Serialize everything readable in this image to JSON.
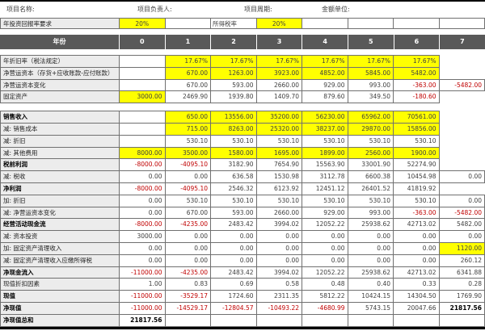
{
  "colors": {
    "highlight": "#FFFF00",
    "negative": "#C00000",
    "year_header_bg": "#595959",
    "label_bg": "#ECECEC"
  },
  "header": {
    "fields": [
      {
        "label": "项目名称:"
      },
      {
        "label": "项目负责人:"
      },
      {
        "label": "项目周期:"
      },
      {
        "label": "金额单位:"
      }
    ]
  },
  "rates": {
    "label": "年投资回报率要求",
    "value": "20%",
    "tax_label": "所得税率",
    "tax_value": "20%"
  },
  "year_header": {
    "label": "年份",
    "years": [
      "0",
      "1",
      "2",
      "3",
      "4",
      "5",
      "6",
      "7"
    ]
  },
  "table": {
    "blocks": [
      {
        "rows": [
          {
            "label": "年折旧率（税法规定）",
            "cells": [
              {
                "t": ""
              },
              {
                "t": "17.67%",
                "y": 1
              },
              {
                "t": "17.67%",
                "y": 1
              },
              {
                "t": "17.67%",
                "y": 1
              },
              {
                "t": "17.67%",
                "y": 1
              },
              {
                "t": "17.67%",
                "y": 1
              },
              {
                "t": "17.67%",
                "y": 1
              },
              null
            ]
          },
          {
            "label": "净营运资本（存货+应收账款-应付账款）",
            "cells": [
              {
                "t": ""
              },
              {
                "t": "670.00",
                "y": 1
              },
              {
                "t": "1263.00",
                "y": 1
              },
              {
                "t": "3923.00",
                "y": 1
              },
              {
                "t": "4852.00",
                "y": 1
              },
              {
                "t": "5845.00",
                "y": 1
              },
              {
                "t": "5482.00",
                "y": 1
              },
              null
            ]
          },
          {
            "label": "净营运资本变化",
            "cells": [
              {
                "t": ""
              },
              {
                "t": "670.00"
              },
              {
                "t": "593.00"
              },
              {
                "t": "2660.00"
              },
              {
                "t": "929.00"
              },
              {
                "t": "993.00"
              },
              {
                "t": "-363.00",
                "r": 1
              },
              {
                "t": "-5482.00",
                "r": 1
              }
            ]
          },
          {
            "label": "固定资产",
            "cells": [
              {
                "t": "3000.00",
                "y": 1
              },
              {
                "t": "2469.90"
              },
              {
                "t": "1939.80"
              },
              {
                "t": "1409.70"
              },
              {
                "t": "879.60"
              },
              {
                "t": "349.50"
              },
              {
                "t": "-180.60",
                "r": 1
              },
              null
            ]
          }
        ]
      },
      {
        "rows": [
          {
            "label": "销售收入",
            "bold": 1,
            "cells": [
              {
                "t": ""
              },
              {
                "t": "650.00",
                "y": 1
              },
              {
                "t": "13556.00",
                "y": 1
              },
              {
                "t": "35200.00",
                "y": 1
              },
              {
                "t": "56230.00",
                "y": 1
              },
              {
                "t": "65962.00",
                "y": 1
              },
              {
                "t": "70561.00",
                "y": 1
              },
              null
            ]
          },
          {
            "label": "减: 销售成本",
            "cells": [
              {
                "t": ""
              },
              {
                "t": "715.00",
                "y": 1
              },
              {
                "t": "8263.00",
                "y": 1
              },
              {
                "t": "25320.00",
                "y": 1
              },
              {
                "t": "38237.00",
                "y": 1
              },
              {
                "t": "29870.00",
                "y": 1
              },
              {
                "t": "15856.00",
                "y": 1
              },
              null
            ]
          },
          {
            "label": "减: 折旧",
            "cells": [
              {
                "t": ""
              },
              {
                "t": "530.10"
              },
              {
                "t": "530.10"
              },
              {
                "t": "530.10"
              },
              {
                "t": "530.10"
              },
              {
                "t": "530.10"
              },
              {
                "t": "530.10"
              },
              null
            ]
          },
          {
            "label": "减: 其他费用",
            "cells": [
              {
                "t": "8000.00",
                "y": 1
              },
              {
                "t": "3500.00",
                "y": 1
              },
              {
                "t": "1580.00",
                "y": 1
              },
              {
                "t": "1695.00",
                "y": 1
              },
              {
                "t": "1899.00",
                "y": 1
              },
              {
                "t": "2560.00",
                "y": 1
              },
              {
                "t": "1900.00",
                "y": 1
              },
              null
            ]
          },
          {
            "label": "税前利润",
            "bold": 1,
            "cells": [
              {
                "t": "-8000.00",
                "r": 1
              },
              {
                "t": "-4095.10",
                "r": 1
              },
              {
                "t": "3182.90"
              },
              {
                "t": "7654.90"
              },
              {
                "t": "15563.90"
              },
              {
                "t": "33001.90"
              },
              {
                "t": "52274.90"
              },
              null
            ]
          },
          {
            "label": "减: 税收",
            "cells": [
              {
                "t": "0.00"
              },
              {
                "t": "0.00"
              },
              {
                "t": "636.58"
              },
              {
                "t": "1530.98"
              },
              {
                "t": "3112.78"
              },
              {
                "t": "6600.38"
              },
              {
                "t": "10454.98"
              },
              {
                "t": "0.00"
              }
            ]
          },
          {
            "label": "净利润",
            "bold": 1,
            "cells": [
              {
                "t": "-8000.00",
                "r": 1
              },
              {
                "t": "-4095.10",
                "r": 1
              },
              {
                "t": "2546.32"
              },
              {
                "t": "6123.92"
              },
              {
                "t": "12451.12"
              },
              {
                "t": "26401.52"
              },
              {
                "t": "41819.92"
              },
              null
            ]
          },
          {
            "label": "加: 折旧",
            "cells": [
              {
                "t": "0.00"
              },
              {
                "t": "530.10"
              },
              {
                "t": "530.10"
              },
              {
                "t": "530.10"
              },
              {
                "t": "530.10"
              },
              {
                "t": "530.10"
              },
              {
                "t": "530.10"
              },
              {
                "t": "0.00"
              }
            ]
          },
          {
            "label": "减: 净营运资本变化",
            "cells": [
              {
                "t": "0.00"
              },
              {
                "t": "670.00"
              },
              {
                "t": "593.00"
              },
              {
                "t": "2660.00"
              },
              {
                "t": "929.00"
              },
              {
                "t": "993.00"
              },
              {
                "t": "-363.00",
                "r": 1
              },
              {
                "t": "-5482.00",
                "r": 1
              }
            ]
          },
          {
            "label": "经营活动现金流",
            "bold": 1,
            "cells": [
              {
                "t": "-8000.00",
                "r": 1
              },
              {
                "t": "-4235.00",
                "r": 1
              },
              {
                "t": "2483.42"
              },
              {
                "t": "3994.02"
              },
              {
                "t": "12052.22"
              },
              {
                "t": "25938.62"
              },
              {
                "t": "42713.02"
              },
              {
                "t": "5482.00"
              }
            ]
          },
          {
            "label": "减: 资本投资",
            "cells": [
              {
                "t": "3000.00"
              },
              {
                "t": "0.00"
              },
              {
                "t": "0.00"
              },
              {
                "t": "0.00"
              },
              {
                "t": "0.00"
              },
              {
                "t": "0.00"
              },
              {
                "t": "0.00"
              },
              {
                "t": "0.00"
              }
            ]
          },
          {
            "label": "加: 固定资产清理收入",
            "cells": [
              {
                "t": "0.00"
              },
              {
                "t": "0.00"
              },
              {
                "t": "0.00"
              },
              {
                "t": "0.00"
              },
              {
                "t": "0.00"
              },
              {
                "t": "0.00"
              },
              {
                "t": "0.00"
              },
              {
                "t": "1120.00",
                "y": 1
              }
            ]
          },
          {
            "label": "减: 固定资产清理收入应缴所得税",
            "cells": [
              {
                "t": "0.00"
              },
              {
                "t": "0.00"
              },
              {
                "t": "0.00"
              },
              {
                "t": "0.00"
              },
              {
                "t": "0.00"
              },
              {
                "t": "0.00"
              },
              {
                "t": "0.00"
              },
              {
                "t": "260.12"
              }
            ]
          },
          {
            "label": "净现金流入",
            "bold": 1,
            "cells": [
              {
                "t": "-11000.00",
                "r": 1
              },
              {
                "t": "-4235.00",
                "r": 1
              },
              {
                "t": "2483.42"
              },
              {
                "t": "3994.02"
              },
              {
                "t": "12052.22"
              },
              {
                "t": "25938.62"
              },
              {
                "t": "42713.02"
              },
              {
                "t": "6341.88"
              }
            ]
          },
          {
            "label": "现值折扣因素",
            "cells": [
              {
                "t": "1.00"
              },
              {
                "t": "0.83"
              },
              {
                "t": "0.69"
              },
              {
                "t": "0.58"
              },
              {
                "t": "0.48"
              },
              {
                "t": "0.40"
              },
              {
                "t": "0.33"
              },
              {
                "t": "0.28"
              }
            ]
          },
          {
            "label": "现值",
            "bold": 1,
            "cells": [
              {
                "t": "-11000.00",
                "r": 1
              },
              {
                "t": "-3529.17",
                "r": 1
              },
              {
                "t": "1724.60"
              },
              {
                "t": "2311.35"
              },
              {
                "t": "5812.22"
              },
              {
                "t": "10424.15"
              },
              {
                "t": "14304.50"
              },
              {
                "t": "1769.90"
              }
            ]
          },
          {
            "label": "净现值",
            "bold": 1,
            "cells": [
              {
                "t": "-11000.00",
                "r": 1
              },
              {
                "t": "-14529.17",
                "r": 1
              },
              {
                "t": "-12804.57",
                "r": 1
              },
              {
                "t": "-10493.22",
                "r": 1
              },
              {
                "t": "-4680.99",
                "r": 1
              },
              {
                "t": "5743.15"
              },
              {
                "t": "20047.66"
              },
              {
                "t": "21817.56",
                "b": 1
              }
            ]
          },
          {
            "label": "净现值总和",
            "bold": 1,
            "cells": [
              {
                "t": "21817.56",
                "b": 1
              },
              {
                "t": ""
              },
              {
                "t": ""
              },
              {
                "t": ""
              },
              {
                "t": ""
              },
              {
                "t": ""
              },
              {
                "t": ""
              },
              {
                "t": ""
              }
            ]
          }
        ]
      }
    ]
  }
}
